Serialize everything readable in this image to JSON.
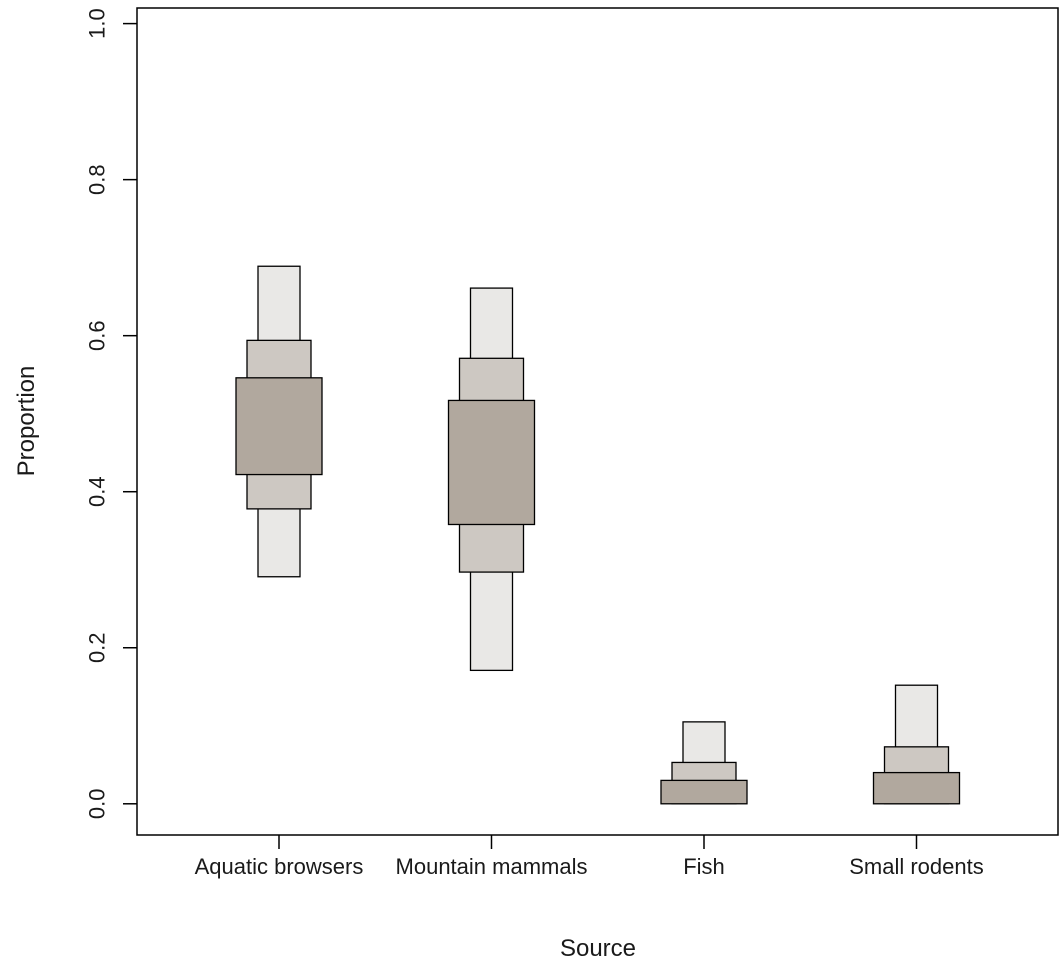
{
  "chart_data": {
    "type": "boxplot",
    "title": "",
    "xlabel": "Source",
    "ylabel": "Proportion",
    "ylim": [
      -0.04,
      1.02
    ],
    "yticks": [
      {
        "value": 0.0,
        "label": "0.0"
      },
      {
        "value": 0.2,
        "label": "0.2"
      },
      {
        "value": 0.4,
        "label": "0.4"
      },
      {
        "value": 0.6,
        "label": "0.6"
      },
      {
        "value": 0.8,
        "label": "0.8"
      },
      {
        "value": 1.0,
        "label": "1.0"
      }
    ],
    "grid": false,
    "legend": "none",
    "band_colors": {
      "inner": "#b1a89e",
      "middle": "#cdc8c2",
      "outer": "#e9e8e6"
    },
    "categories": [
      {
        "label": "Aquatic browsers",
        "outer": [
          0.291,
          0.689
        ],
        "middle": [
          0.378,
          0.594
        ],
        "inner": [
          0.422,
          0.546
        ]
      },
      {
        "label": "Mountain mammals",
        "outer": [
          0.171,
          0.661
        ],
        "middle": [
          0.297,
          0.571
        ],
        "inner": [
          0.358,
          0.517
        ]
      },
      {
        "label": "Fish",
        "outer": [
          0.0,
          0.105
        ],
        "middle": [
          0.0,
          0.053
        ],
        "inner": [
          0.0,
          0.03
        ]
      },
      {
        "label": "Small rodents",
        "outer": [
          0.0,
          0.152
        ],
        "middle": [
          0.0,
          0.073
        ],
        "inner": [
          0.0,
          0.04
        ]
      }
    ]
  }
}
